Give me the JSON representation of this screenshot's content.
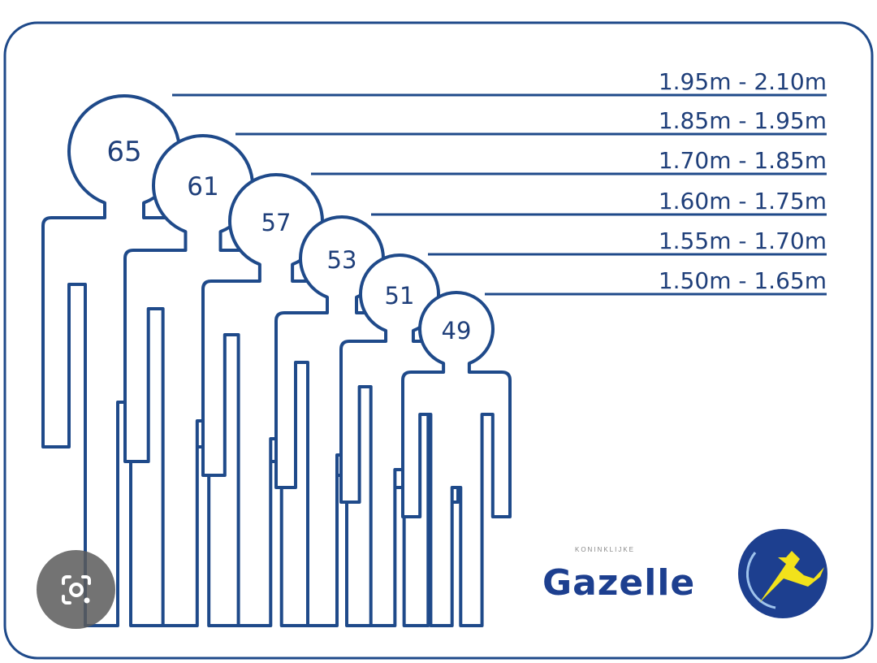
{
  "colors": {
    "line": "#1f4a8a",
    "text": "#1f3f7a",
    "logo_blue": "#1d3f8f",
    "logo_yellow": "#f2e21b"
  },
  "figures": [
    {
      "size": "65",
      "height_range": "1.95m - 2.10m"
    },
    {
      "size": "61",
      "height_range": "1.85m - 1.95m"
    },
    {
      "size": "57",
      "height_range": "1.70m - 1.85m"
    },
    {
      "size": "53",
      "height_range": "1.60m - 1.75m"
    },
    {
      "size": "51",
      "height_range": "1.55m - 1.70m"
    },
    {
      "size": "49",
      "height_range": "1.50m - 1.65m"
    }
  ],
  "logo": {
    "small_text": "KONINKLIJKE",
    "brand": "Gazelle",
    "icon": "gazelle-emblem-icon"
  },
  "overlay": {
    "icon": "lens-camera-icon"
  }
}
